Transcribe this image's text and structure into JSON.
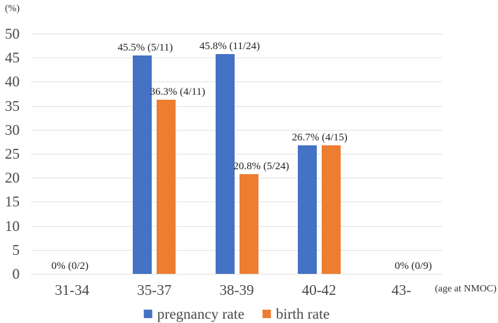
{
  "chart_data": {
    "type": "bar",
    "title": "",
    "unit_label": "(%)",
    "axis_note": "(age at NMOC)",
    "categories": [
      "31-34",
      "35-37",
      "38-39",
      "40-42",
      "43-"
    ],
    "y_ticks": [
      0,
      5,
      10,
      15,
      20,
      25,
      30,
      35,
      40,
      45,
      50
    ],
    "ylim": [
      0,
      50
    ],
    "grid": true,
    "legend_position": "bottom",
    "series": [
      {
        "name": "pregnancy rate",
        "color": "#4472C4",
        "values": [
          0,
          45.5,
          45.8,
          26.7,
          0
        ]
      },
      {
        "name": "birth rate",
        "color": "#ED7D31",
        "values": [
          0,
          36.3,
          20.8,
          26.7,
          0
        ]
      }
    ],
    "point_labels": [
      {
        "text": "0% (0/2)",
        "category": 0,
        "anchor": "category",
        "value": 0,
        "dx": -3
      },
      {
        "text": "45.5% (5/11)",
        "category": 1,
        "anchor": "series0",
        "value": 45.5,
        "dx": 4
      },
      {
        "text": "36.3% (4/11)",
        "category": 1,
        "anchor": "series1",
        "value": 36.3,
        "dx": 16
      },
      {
        "text": "45.8% (11/24)",
        "category": 2,
        "anchor": "series0",
        "value": 45.8,
        "dx": 7
      },
      {
        "text": "20.8% (5/24)",
        "category": 2,
        "anchor": "series1",
        "value": 20.8,
        "dx": 18
      },
      {
        "text": "26.7% (4/15)",
        "category": 3,
        "anchor": "category",
        "value": 26.7,
        "dx": 1
      },
      {
        "text": "0% (0/9)",
        "category": 4,
        "anchor": "category",
        "value": 0,
        "dx": 17
      }
    ],
    "colors": {
      "gridline": "#E2E2E2",
      "axis_text": "#4A4A4A",
      "label_text": "#1F1F1F"
    }
  }
}
